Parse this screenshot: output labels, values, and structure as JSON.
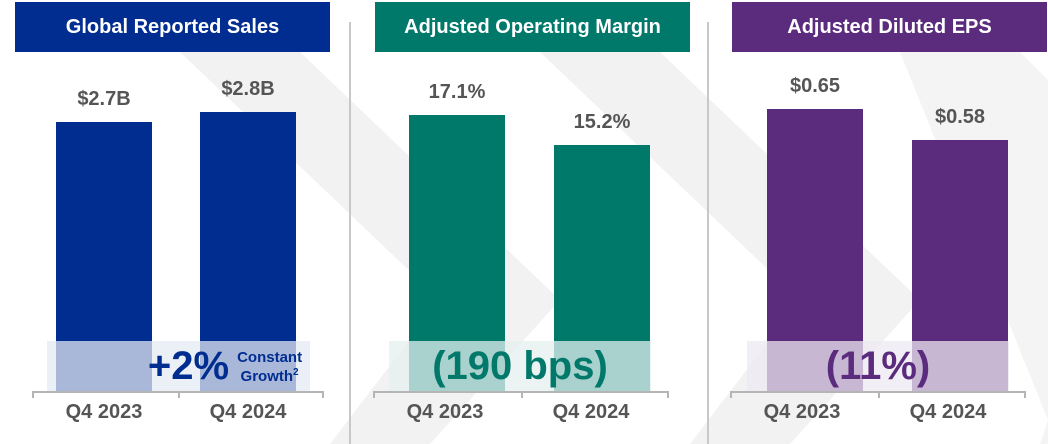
{
  "chart_data": [
    {
      "type": "bar",
      "title": "Global Reported Sales",
      "categories": [
        "Q4 2023",
        "Q4 2024"
      ],
      "values": [
        2.7,
        2.8
      ],
      "value_labels": [
        "$2.7B",
        "$2.8B"
      ],
      "unit": "USD billions",
      "ylim": [
        0,
        3.7
      ],
      "color": "#002d8f",
      "change": "+2%",
      "change_note": "Constant",
      "change_note2": "Growth",
      "change_note_sup": "2",
      "xlabel": "",
      "ylabel": ""
    },
    {
      "type": "bar",
      "title": "Adjusted Operating Margin",
      "categories": [
        "Q4 2023",
        "Q4 2024"
      ],
      "values": [
        17.1,
        15.2
      ],
      "value_labels": [
        "17.1%",
        "15.2%"
      ],
      "unit": "percent",
      "ylim": [
        0,
        22.8
      ],
      "color": "#00796b",
      "change": "(190 bps)",
      "xlabel": "",
      "ylabel": ""
    },
    {
      "type": "bar",
      "title": "Adjusted Diluted EPS",
      "categories": [
        "Q4 2023",
        "Q4 2024"
      ],
      "values": [
        0.65,
        0.58
      ],
      "value_labels": [
        "$0.65",
        "$0.58"
      ],
      "unit": "USD",
      "ylim": [
        0,
        0.85
      ],
      "color": "#5b2c7e",
      "change": "(11%)",
      "xlabel": "",
      "ylabel": ""
    }
  ]
}
